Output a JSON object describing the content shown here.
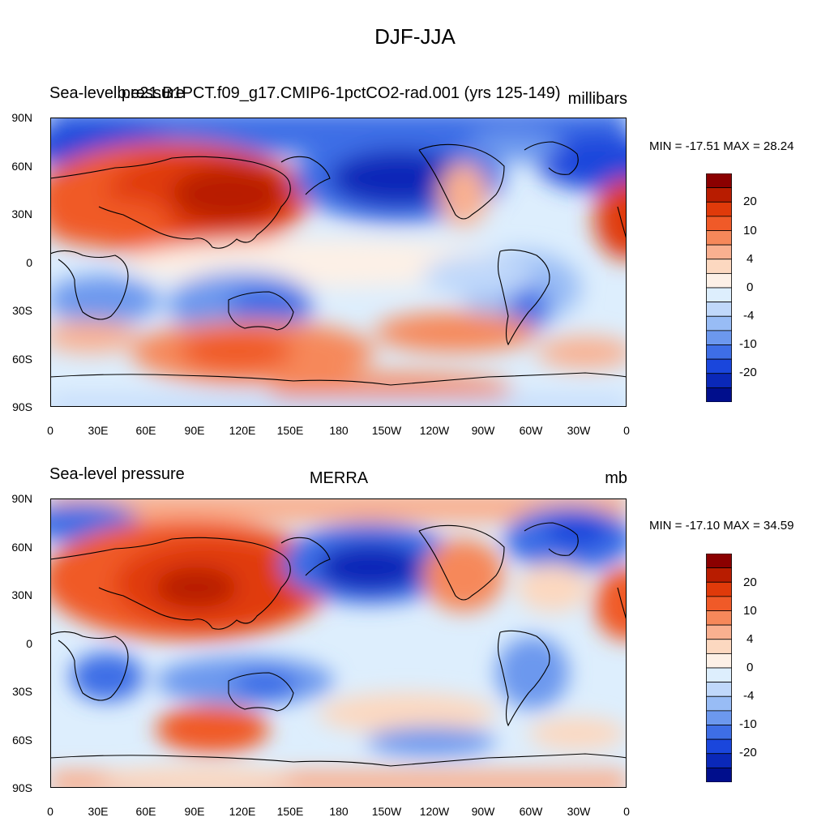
{
  "title": "DJF-JJA",
  "panels": [
    {
      "left_string": "Sea-level pressure",
      "center_string": "b.e21.B1PCT.f09_g17.CMIP6-1pctCO2-rad.001 (yrs 125-149)",
      "right_string": "millibars",
      "min_max": "MIN = -17.51 MAX =  28.24"
    },
    {
      "left_string": "Sea-level pressure",
      "center_string": "MERRA",
      "right_string": "mb",
      "min_max": "MIN = -17.10 MAX =  34.59"
    }
  ],
  "axes": {
    "lat_labels": [
      "90N",
      "60N",
      "30N",
      "0",
      "30S",
      "60S",
      "90S"
    ],
    "lon_labels": [
      "0",
      "30E",
      "60E",
      "90E",
      "120E",
      "150E",
      "180",
      "150W",
      "120W",
      "90W",
      "60W",
      "30W",
      "0"
    ]
  },
  "colorbar": {
    "labels": [
      "20",
      "10",
      "4",
      "0",
      "-4",
      "-10",
      "-20"
    ],
    "colors": [
      "#8b0000",
      "#b81c00",
      "#e03a0a",
      "#f05a28",
      "#f6885a",
      "#f9b090",
      "#fcd8c0",
      "#fdf0e6",
      "#ddeefd",
      "#c0d8fa",
      "#98bcf5",
      "#6c98ee",
      "#3e6ee6",
      "#1a46dc",
      "#0a28b8",
      "#000e8c"
    ]
  },
  "chart_data": {
    "type": "heatmap",
    "description_variable": "Sea-level pressure",
    "panels": [
      {
        "subtitle": "b.e21.B1PCT.f09_g17.CMIP6-1pctCO2-rad.001 (yrs 125-149)",
        "units": "millibars",
        "min": -17.51,
        "max": 28.24
      },
      {
        "subtitle": "MERRA",
        "units": "mb",
        "min": -17.1,
        "max": 34.59
      }
    ],
    "contour_levels": [
      -20,
      -15,
      -10,
      -8,
      -6,
      -4,
      -2,
      0,
      2,
      4,
      6,
      8,
      10,
      15,
      20
    ],
    "xlim": [
      0,
      360
    ],
    "ylim": [
      -90,
      90
    ]
  }
}
